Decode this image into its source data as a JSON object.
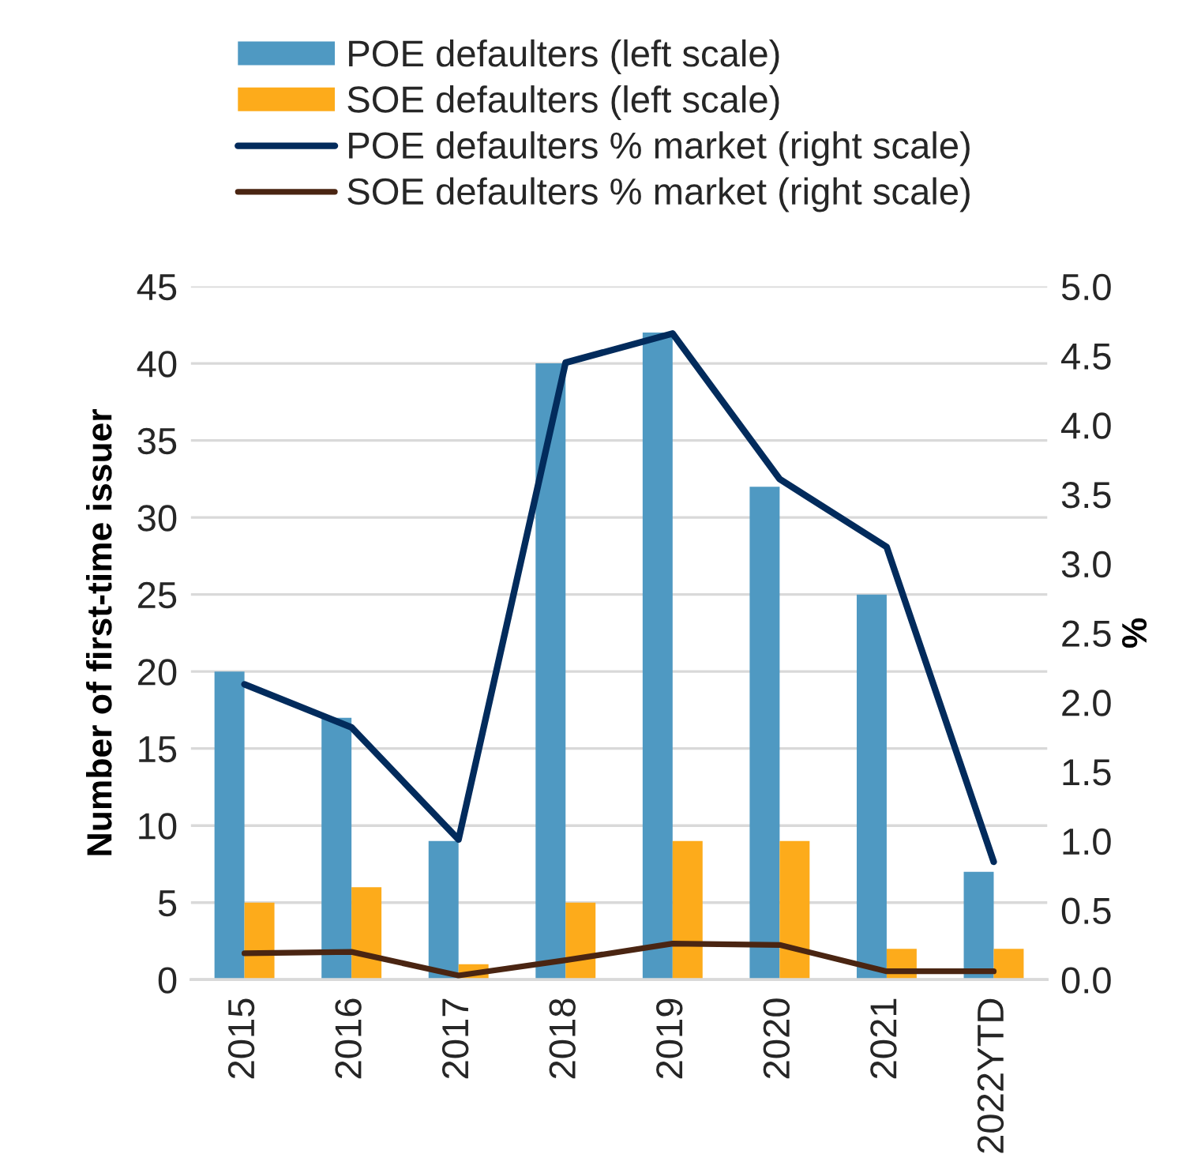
{
  "chart_data": {
    "type": "bar",
    "categories": [
      "2015",
      "2016",
      "2017",
      "2018",
      "2019",
      "2020",
      "2021",
      "2022YTD"
    ],
    "series": [
      {
        "name": "POE defaulters (left scale)",
        "color": "#4f99c2",
        "values": [
          20,
          17,
          9,
          40,
          42,
          32,
          25,
          7
        ]
      },
      {
        "name": "SOE defaulters (left scale)",
        "color": "#fdab1b",
        "values": [
          5,
          6,
          1,
          5,
          9,
          9,
          2,
          2
        ]
      },
      {
        "name": "POE defaulters % market (right scale)",
        "type": "line",
        "axis": "y2",
        "color": "#022b5c",
        "values": [
          2.13,
          1.82,
          1.01,
          4.45,
          4.66,
          3.61,
          3.12,
          0.85
        ]
      },
      {
        "name": "SOE defaulters % market (right scale)",
        "type": "line",
        "axis": "y2",
        "color": "#4a2512",
        "values": [
          0.19,
          0.2,
          0.03,
          0.14,
          0.26,
          0.25,
          0.06,
          0.06
        ]
      }
    ],
    "ylabel": "Number of first-time issuer",
    "y2label": "%",
    "ylim": [
      0,
      45
    ],
    "yticks": [
      0,
      5,
      10,
      15,
      20,
      25,
      30,
      35,
      40,
      45
    ],
    "y2lim": [
      0,
      5
    ],
    "y2ticks": [
      {
        "value": 0,
        "label": "0.0"
      },
      {
        "value": 0.5,
        "label": "0.5"
      },
      {
        "value": 1,
        "label": "1.0"
      },
      {
        "value": 1.5,
        "label": "1.5"
      },
      {
        "value": 2,
        "label": "2.0"
      },
      {
        "value": 2.5,
        "label": "2.5"
      },
      {
        "value": 3,
        "label": "3.0"
      },
      {
        "value": 3.5,
        "label": "3.5"
      },
      {
        "value": 4,
        "label": "4.0"
      },
      {
        "value": 4.5,
        "label": "4.5"
      },
      {
        "value": 5,
        "label": "5.0"
      }
    ],
    "grid": "y",
    "legend": "top"
  }
}
